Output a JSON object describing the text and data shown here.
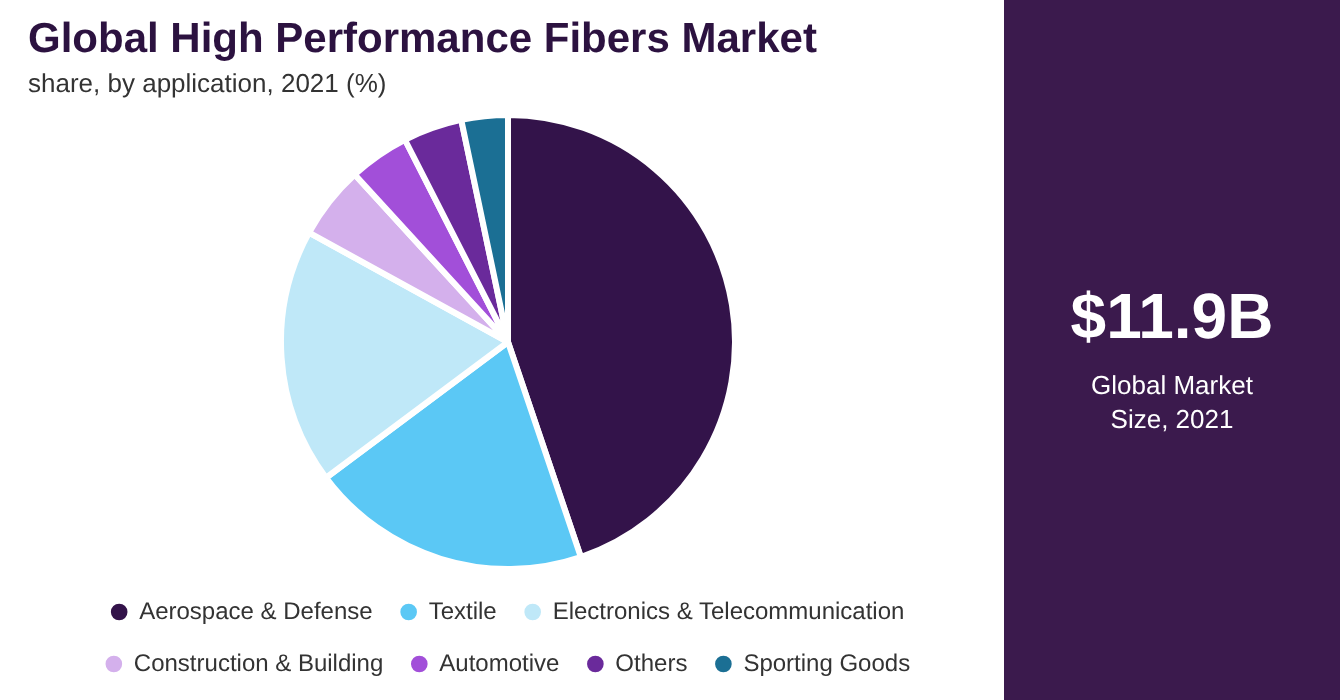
{
  "chart_data": {
    "type": "pie",
    "title": "Global High Performance Fibers Market",
    "subtitle": "share, by application, 2021 (%)",
    "categories": [
      "Aerospace & Defense",
      "Textile",
      "Electronics & Telecommunication",
      "Construction & Building",
      "Automotive",
      "Others",
      "Sporting Goods"
    ],
    "values": [
      44.8,
      20,
      18.2,
      5.2,
      4.3,
      4.2,
      3.3
    ],
    "colors": [
      "#33134a",
      "#5bc8f5",
      "#bfe8f8",
      "#d4b0ec",
      "#a24fd9",
      "#6a2a9b",
      "#1b6f94"
    ],
    "legend": "bottom",
    "annotations": [
      "$11.9B",
      "Global Market Size, 2021"
    ]
  }
}
